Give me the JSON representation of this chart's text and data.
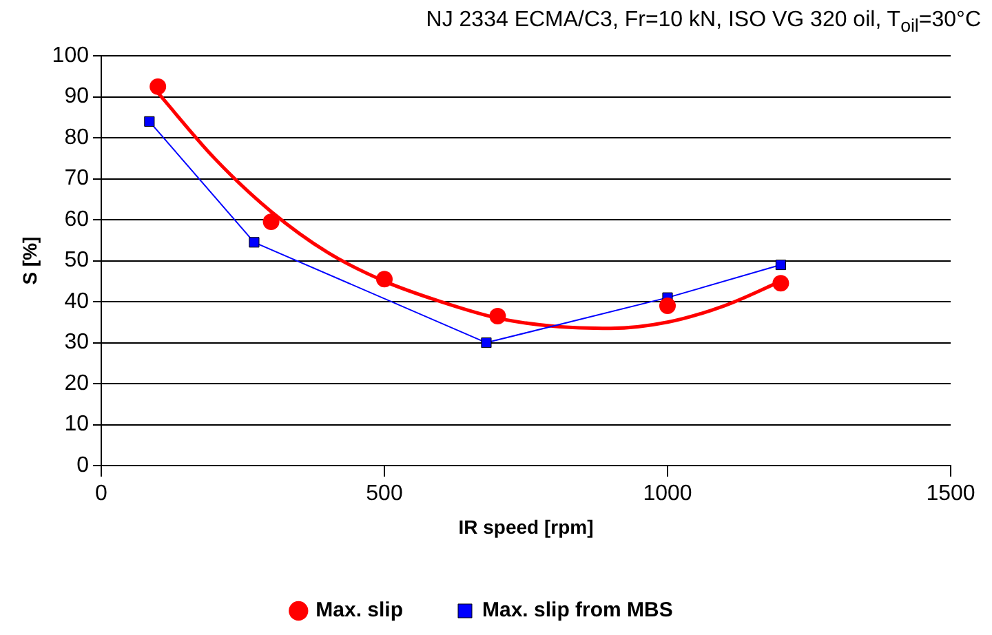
{
  "chart_data": {
    "type": "scatter",
    "title": "NJ 2334 ECMA/C3, Fr=10 kN, ISO VG 320 oil, T$_{oil}$=30°C",
    "xlabel": "IR speed [rpm]",
    "ylabel": "S [%]",
    "xlim": [
      0,
      1500
    ],
    "xticks": [
      0,
      500,
      1000,
      1500
    ],
    "ylim": [
      0,
      100
    ],
    "yticks": [
      0,
      10,
      20,
      30,
      40,
      50,
      60,
      70,
      80,
      90,
      100
    ],
    "grid": "y",
    "legend": "bottom",
    "series": [
      {
        "name": "Max. slip",
        "type": "scatter",
        "marker": "circle",
        "color": "#ff0000",
        "x": [
          100,
          300,
          500,
          700,
          1000,
          1200
        ],
        "values": [
          92.5,
          59.5,
          45.5,
          36.5,
          39,
          44.5
        ]
      },
      {
        "name": "Max. slip from MBS",
        "type": "line",
        "marker": "square",
        "color": "#0000ff",
        "x": [
          85,
          270,
          680,
          1000,
          1200
        ],
        "values": [
          84,
          54.5,
          30,
          41,
          49
        ]
      },
      {
        "type": "line",
        "marker": "none",
        "color": "#ff0000",
        "x": [
          100,
          200,
          300,
          400,
          500,
          600,
          700,
          800,
          900,
          1000,
          1100,
          1200
        ],
        "values": [
          91,
          75,
          62,
          52,
          45,
          40,
          36,
          34,
          33.5,
          35,
          39,
          45
        ]
      }
    ]
  }
}
